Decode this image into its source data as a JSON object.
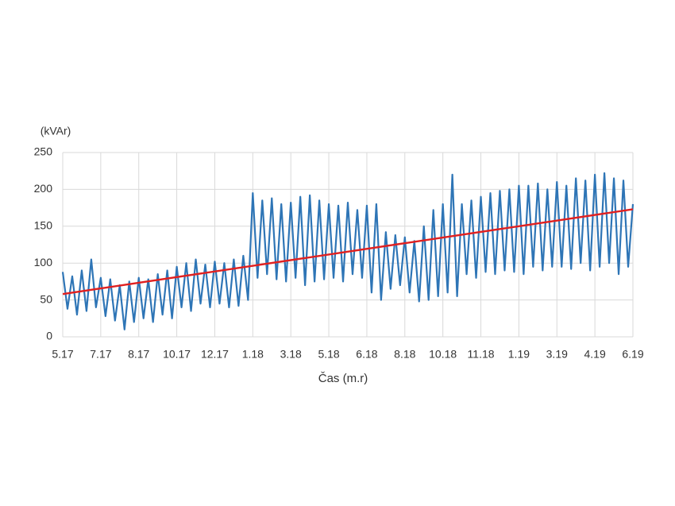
{
  "chart_data": {
    "type": "line",
    "ylabel": "(kVAr)",
    "xlabel": "Čas (m.r)",
    "xlim": [
      0,
      15
    ],
    "xticks": [
      {
        "value": 0,
        "label": "5.17"
      },
      {
        "value": 1,
        "label": "7.17"
      },
      {
        "value": 2,
        "label": "8.17"
      },
      {
        "value": 3,
        "label": "10.17"
      },
      {
        "value": 4,
        "label": "12.17"
      },
      {
        "value": 5,
        "label": "1.18"
      },
      {
        "value": 6,
        "label": "3.18"
      },
      {
        "value": 7,
        "label": "5.18"
      },
      {
        "value": 8,
        "label": "6.18"
      },
      {
        "value": 9,
        "label": "8.18"
      },
      {
        "value": 10,
        "label": "10.18"
      },
      {
        "value": 11,
        "label": "11.18"
      },
      {
        "value": 12,
        "label": "1.19"
      },
      {
        "value": 13,
        "label": "3.19"
      },
      {
        "value": 14,
        "label": "4.19"
      },
      {
        "value": 15,
        "label": "6.19"
      }
    ],
    "ylim": [
      0,
      250
    ],
    "yticks": [
      0,
      50,
      100,
      150,
      200,
      250
    ],
    "grid": true,
    "series": [
      {
        "color": "#2e75b6",
        "x": [
          0,
          0.125,
          0.25,
          0.375,
          0.5,
          0.625,
          0.75,
          0.875,
          1,
          1.125,
          1.25,
          1.375,
          1.5,
          1.625,
          1.75,
          1.875,
          2,
          2.125,
          2.25,
          2.375,
          2.5,
          2.625,
          2.75,
          2.875,
          3,
          3.125,
          3.25,
          3.375,
          3.5,
          3.625,
          3.75,
          3.875,
          4,
          4.125,
          4.25,
          4.375,
          4.5,
          4.625,
          4.75,
          4.875,
          5,
          5.125,
          5.25,
          5.375,
          5.5,
          5.625,
          5.75,
          5.875,
          6,
          6.125,
          6.25,
          6.375,
          6.5,
          6.625,
          6.75,
          6.875,
          7,
          7.125,
          7.25,
          7.375,
          7.5,
          7.625,
          7.75,
          7.875,
          8,
          8.125,
          8.25,
          8.375,
          8.5,
          8.625,
          8.75,
          8.875,
          9,
          9.125,
          9.25,
          9.375,
          9.5,
          9.625,
          9.75,
          9.875,
          10,
          10.125,
          10.25,
          10.375,
          10.5,
          10.625,
          10.75,
          10.875,
          11,
          11.125,
          11.25,
          11.375,
          11.5,
          11.625,
          11.75,
          11.875,
          12,
          12.125,
          12.25,
          12.375,
          12.5,
          12.625,
          12.75,
          12.875,
          13,
          13.125,
          13.25,
          13.375,
          13.5,
          13.625,
          13.75,
          13.875,
          14,
          14.125,
          14.25,
          14.375,
          14.5,
          14.625,
          14.75,
          14.875,
          15
        ],
        "values": [
          88,
          38,
          82,
          30,
          90,
          35,
          105,
          40,
          80,
          28,
          78,
          22,
          70,
          10,
          75,
          20,
          80,
          25,
          78,
          20,
          85,
          30,
          90,
          25,
          95,
          40,
          100,
          35,
          105,
          45,
          98,
          40,
          102,
          45,
          100,
          40,
          105,
          42,
          110,
          50,
          195,
          80,
          185,
          85,
          188,
          78,
          180,
          75,
          182,
          80,
          190,
          70,
          192,
          75,
          185,
          78,
          180,
          80,
          178,
          75,
          182,
          85,
          172,
          80,
          178,
          60,
          180,
          50,
          142,
          65,
          138,
          70,
          135,
          60,
          130,
          48,
          150,
          50,
          172,
          55,
          180,
          60,
          220,
          55,
          180,
          85,
          185,
          80,
          190,
          88,
          195,
          85,
          198,
          90,
          200,
          88,
          205,
          85,
          205,
          95,
          208,
          90,
          200,
          95,
          210,
          95,
          205,
          92,
          215,
          100,
          212,
          90,
          220,
          95,
          222,
          100,
          215,
          85,
          212,
          95,
          180
        ]
      },
      {
        "color": "#e02020",
        "x": [
          0,
          15
        ],
        "values": [
          58,
          173
        ]
      }
    ]
  }
}
